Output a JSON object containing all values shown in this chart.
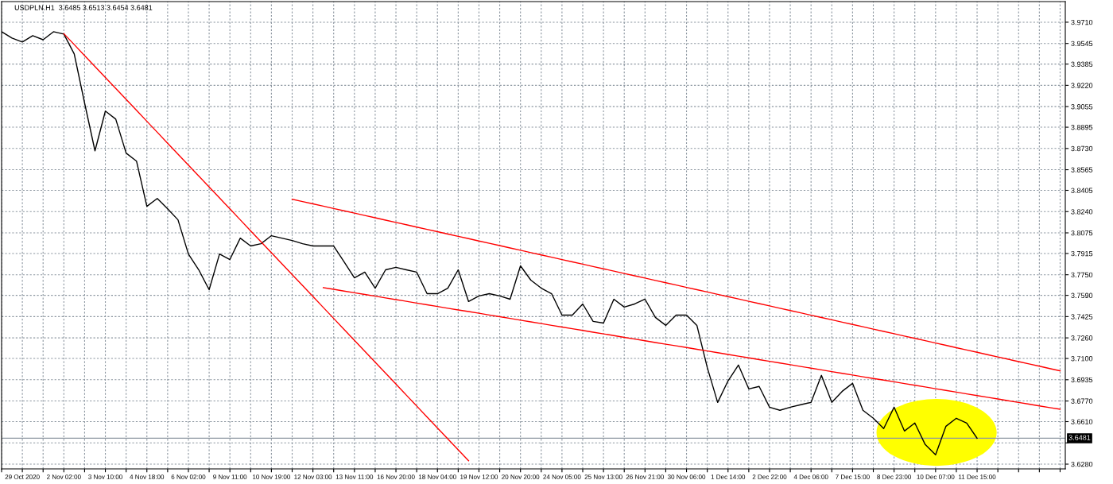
{
  "chart_data": {
    "type": "line",
    "title": "USDPLN.H1  3.6485 3.6513 3.6454 3.6481",
    "categories": [
      null,
      null,
      "29 Oct 2020",
      null,
      null,
      null,
      "2 Nov 02:00",
      null,
      null,
      null,
      "3 Nov 10:00",
      null,
      null,
      null,
      "4 Nov 18:00",
      null,
      null,
      null,
      "6 Nov 02:00",
      null,
      null,
      null,
      "9 Nov 11:00",
      null,
      null,
      null,
      "10 Nov 19:00",
      null,
      null,
      null,
      "12 Nov 03:00",
      null,
      null,
      null,
      "13 Nov 11:00",
      null,
      null,
      null,
      "16 Nov 20:00",
      null,
      null,
      null,
      "18 Nov 04:00",
      null,
      null,
      null,
      "19 Nov 12:00",
      null,
      null,
      null,
      "20 Nov 20:00",
      null,
      null,
      null,
      "24 Nov 05:00",
      null,
      null,
      null,
      "25 Nov 13:00",
      null,
      null,
      null,
      "26 Nov 21:00",
      null,
      null,
      null,
      "30 Nov 06:00",
      null,
      null,
      null,
      "1 Dec 14:00",
      null,
      null,
      null,
      "2 Dec 22:00",
      null,
      null,
      null,
      "4 Dec 06:00",
      null,
      null,
      null,
      "7 Dec 15:00",
      null,
      null,
      null,
      "8 Dec 23:00",
      null,
      null,
      null,
      "10 Dec 07:00",
      null,
      null,
      null,
      "11 Dec 15:00",
      null,
      null,
      null,
      null,
      null,
      null,
      null,
      null
    ],
    "series": [
      {
        "color": "#000000",
        "values": [
          3.9636,
          3.9587,
          3.9556,
          3.9605,
          3.9574,
          3.9636,
          3.9618,
          3.9464,
          3.9082,
          3.8712,
          3.902,
          3.8958,
          3.8694,
          3.8632,
          3.8281,
          3.8342,
          3.8262,
          3.8176,
          3.7911,
          3.7788,
          3.7634,
          3.7911,
          3.7868,
          3.8034,
          3.7973,
          3.7991,
          3.8053,
          3.8034,
          3.8016,
          3.7991,
          3.7973,
          3.7973,
          3.7973,
          3.785,
          3.7726,
          3.777,
          3.7646,
          3.7788,
          3.7807,
          3.7788,
          3.777,
          3.7603,
          3.7603,
          3.7646,
          3.7788,
          3.7542,
          3.7585,
          3.7603,
          3.7585,
          3.756,
          3.7819,
          3.7708,
          3.7646,
          3.7603,
          3.7437,
          3.7437,
          3.7523,
          3.7388,
          3.7375,
          3.756,
          3.7499,
          3.7523,
          3.756,
          3.7419,
          3.7357,
          3.7437,
          3.7437,
          3.7357,
          3.703,
          3.6759,
          3.6926,
          3.7049,
          3.6864,
          3.6883,
          3.6722,
          3.6698,
          3.6722,
          3.6741,
          3.6759,
          3.6969,
          3.6759,
          3.6845,
          3.6907,
          3.6698,
          3.6636,
          3.6556,
          3.6722,
          3.6537,
          3.6599,
          3.6432,
          3.6353,
          3.6574,
          3.6636,
          3.6599,
          3.6481,
          null,
          null,
          null,
          null,
          null,
          null,
          null,
          null
        ]
      },
      {
        "color": "#ff0000",
        "values": [
          null,
          null,
          null,
          null,
          null,
          null,
          3.9621,
          3.9536,
          3.9451,
          3.9366,
          3.9281,
          3.9196,
          3.9111,
          3.9026,
          3.8941,
          3.8856,
          3.8771,
          3.8686,
          3.8601,
          3.8516,
          3.8431,
          3.8346,
          3.8261,
          3.8176,
          3.8091,
          3.8006,
          3.7921,
          3.7836,
          3.7751,
          3.7666,
          3.7581,
          3.7496,
          3.7411,
          3.7326,
          3.7241,
          3.7156,
          3.7071,
          3.6986,
          3.6901,
          3.6816,
          3.6731,
          3.6646,
          3.6561,
          3.6476,
          3.6391,
          3.6306,
          null,
          null,
          null,
          null,
          null,
          null,
          null,
          null,
          null,
          null,
          null,
          null,
          null,
          null,
          null,
          null,
          null,
          null,
          null,
          null,
          null,
          null,
          null,
          null,
          null,
          null,
          null,
          null,
          null,
          null,
          null,
          null,
          null,
          null,
          null,
          null,
          null,
          null,
          null,
          null,
          null,
          null,
          null,
          null,
          null,
          null,
          null,
          null,
          null,
          null,
          null,
          null,
          null,
          null,
          null,
          null,
          null
        ]
      },
      {
        "color": "#ff0000",
        "values": [
          null,
          null,
          null,
          null,
          null,
          null,
          null,
          null,
          null,
          null,
          null,
          null,
          null,
          null,
          null,
          null,
          null,
          null,
          null,
          null,
          null,
          null,
          null,
          null,
          null,
          null,
          null,
          null,
          3.8336,
          3.8318,
          3.83,
          3.8282,
          3.8264,
          3.8246,
          3.8228,
          3.821,
          3.8192,
          3.8174,
          3.8156,
          3.8138,
          3.812,
          3.8102,
          3.8084,
          3.8066,
          3.8048,
          3.803,
          3.8012,
          3.7994,
          3.7976,
          3.7958,
          3.794,
          3.7922,
          3.7904,
          3.7886,
          3.7868,
          3.785,
          3.7832,
          3.7814,
          3.7796,
          3.7778,
          3.776,
          3.7742,
          3.7724,
          3.7706,
          3.7688,
          3.767,
          3.7652,
          3.7634,
          3.7616,
          3.7598,
          3.758,
          3.7562,
          3.7544,
          3.7526,
          3.7508,
          3.749,
          3.7472,
          3.7454,
          3.7436,
          3.7418,
          3.74,
          3.7382,
          3.7364,
          3.7346,
          3.7328,
          3.731,
          3.7292,
          3.7274,
          3.7256,
          3.7238,
          3.722,
          3.7202,
          3.7184,
          3.7166,
          3.7148,
          3.713,
          3.7112,
          3.7094,
          3.7076,
          3.7058,
          3.704,
          3.7022,
          3.7004
        ]
      },
      {
        "color": "#ff0000",
        "values": [
          null,
          null,
          null,
          null,
          null,
          null,
          null,
          null,
          null,
          null,
          null,
          null,
          null,
          null,
          null,
          null,
          null,
          null,
          null,
          null,
          null,
          null,
          null,
          null,
          null,
          null,
          null,
          null,
          null,
          null,
          null,
          3.765,
          3.7637,
          3.7623,
          3.761,
          3.7597,
          3.7584,
          3.757,
          3.7557,
          3.7544,
          3.753,
          3.7517,
          3.7504,
          3.749,
          3.7477,
          3.7464,
          3.7451,
          3.7437,
          3.7424,
          3.7411,
          3.7397,
          3.7384,
          3.7371,
          3.7357,
          3.7344,
          3.7331,
          3.7318,
          3.7304,
          3.7291,
          3.7278,
          3.7264,
          3.7251,
          3.7238,
          3.7224,
          3.7211,
          3.7198,
          3.7185,
          3.7171,
          3.7158,
          3.7145,
          3.7131,
          3.7118,
          3.7105,
          3.7091,
          3.7078,
          3.7065,
          3.7052,
          3.7038,
          3.7025,
          3.7012,
          3.6998,
          3.6985,
          3.6972,
          3.6958,
          3.6945,
          3.6932,
          3.6919,
          3.6905,
          3.6892,
          3.6879,
          3.6865,
          3.6852,
          3.6839,
          3.6825,
          3.6812,
          3.6799,
          3.6786,
          3.6772,
          3.6759,
          3.6746,
          3.6732,
          3.6719,
          3.6706
        ]
      }
    ],
    "ylim": [
      3.6243,
      3.987
    ],
    "yticks": [
      {
        "value": 3.628,
        "label": "3.6280"
      },
      {
        "value": 3.6445,
        "label": null
      },
      {
        "value": 3.661,
        "label": "3.6610"
      },
      {
        "value": 3.677,
        "label": "3.6770"
      },
      {
        "value": 3.6935,
        "label": "3.6935"
      },
      {
        "value": 3.71,
        "label": "3.7100"
      },
      {
        "value": 3.726,
        "label": "3.7260"
      },
      {
        "value": 3.7425,
        "label": "3.7425"
      },
      {
        "value": 3.759,
        "label": "3.7590"
      },
      {
        "value": 3.775,
        "label": "3.7750"
      },
      {
        "value": 3.7915,
        "label": "3.7915"
      },
      {
        "value": 3.8075,
        "label": "3.8075"
      },
      {
        "value": 3.824,
        "label": "3.8240"
      },
      {
        "value": 3.8405,
        "label": "3.8405"
      },
      {
        "value": 3.8565,
        "label": "3.8565"
      },
      {
        "value": 3.873,
        "label": "3.8730"
      },
      {
        "value": 3.8895,
        "label": "3.8895"
      },
      {
        "value": 3.9055,
        "label": "3.9055"
      },
      {
        "value": 3.922,
        "label": "3.9220"
      },
      {
        "value": 3.9385,
        "label": "3.9385"
      },
      {
        "value": 3.9545,
        "label": "3.9545"
      },
      {
        "value": 3.971,
        "label": "3.9710"
      }
    ],
    "ref_lines": [
      {
        "axis": "y",
        "value": 3.6481,
        "label": "3.6481",
        "color": "#8c96a0"
      }
    ],
    "grid": true,
    "marker": "none",
    "line_style": "solid"
  }
}
